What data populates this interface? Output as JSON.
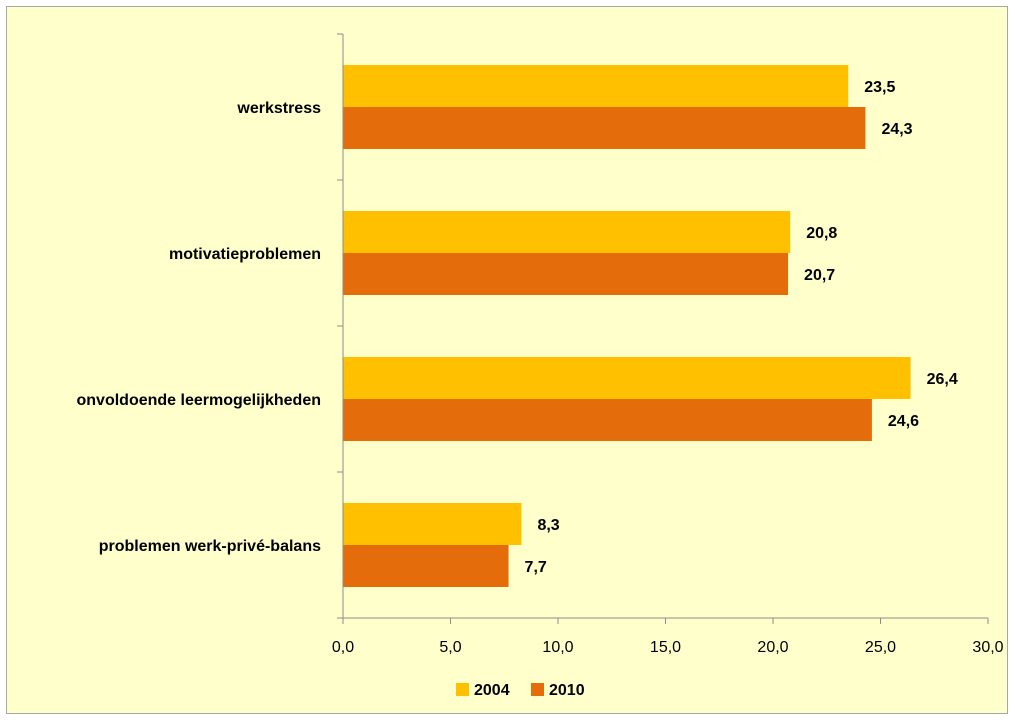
{
  "chart_data": {
    "type": "bar",
    "orientation": "horizontal",
    "categories": [
      "werkstress",
      "motivatieproblemen",
      "onvoldoende leermogelijkheden",
      "problemen werk-privé-balans"
    ],
    "series": [
      {
        "name": "2004",
        "values": [
          23.5,
          20.8,
          26.4,
          8.3
        ],
        "labels": [
          "23,5",
          "20,8",
          "26,4",
          "8,3"
        ],
        "color": "#ffc000"
      },
      {
        "name": "2010",
        "values": [
          24.3,
          20.7,
          24.6,
          7.7
        ],
        "labels": [
          "24,3",
          "20,7",
          "24,6",
          "7,7"
        ],
        "color": "#e46c0a"
      }
    ],
    "xlim": [
      0,
      30
    ],
    "xticks": [
      0,
      5,
      10,
      15,
      20,
      25,
      30
    ],
    "xtick_labels": [
      "0,0",
      "5,0",
      "10,0",
      "15,0",
      "20,0",
      "25,0",
      "30,0"
    ],
    "title": "",
    "xlabel": "",
    "ylabel": "",
    "grid": false,
    "legend_position": "bottom",
    "background": "#ffffcc"
  }
}
